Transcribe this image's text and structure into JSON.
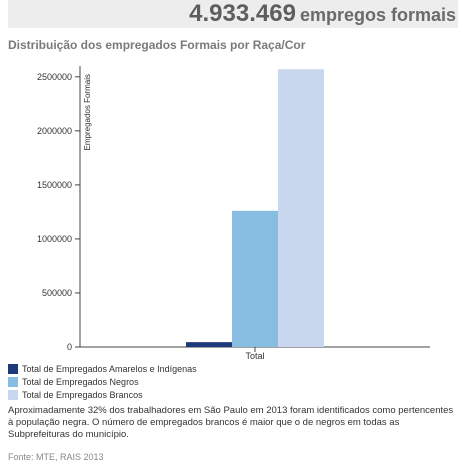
{
  "header": {
    "number": "4.933.469",
    "suffix": "empregos formais"
  },
  "title": "Distribuição dos empregados Formais por Raça/Cor",
  "description": "Aproximadamente 32% dos trabalhadores em São Paulo em 2013 foram identificados como pertencentes à população negra. O número de empregados brancos é maior que o de negros em todas as Subprefeituras do município.",
  "source": "Fonte: MTE, RAIS 2013",
  "chart_data": {
    "type": "bar",
    "title": "Distribuição dos empregados Formais por Raça/Cor",
    "xlabel": "",
    "ylabel": "Empregados Formais",
    "categories": [
      "Total"
    ],
    "ylim": [
      0,
      2600000
    ],
    "yticks": [
      0,
      500000,
      1000000,
      1500000,
      2000000,
      2500000
    ],
    "ytick_labels": [
      "0",
      "500000",
      "1000000",
      "1500000",
      "2000000",
      "2500000"
    ],
    "grid": false,
    "legend_position": "bottom-left",
    "series": [
      {
        "name": "Total de Empregados Amarelos e Indígenas",
        "values": [
          45000
        ],
        "color": "#1f3a7a"
      },
      {
        "name": "Total de Empregados Negros",
        "values": [
          1260000
        ],
        "color": "#86bde0"
      },
      {
        "name": "Total de Empregados Brancos",
        "values": [
          2570000
        ],
        "color": "#c8d6ee"
      }
    ]
  }
}
